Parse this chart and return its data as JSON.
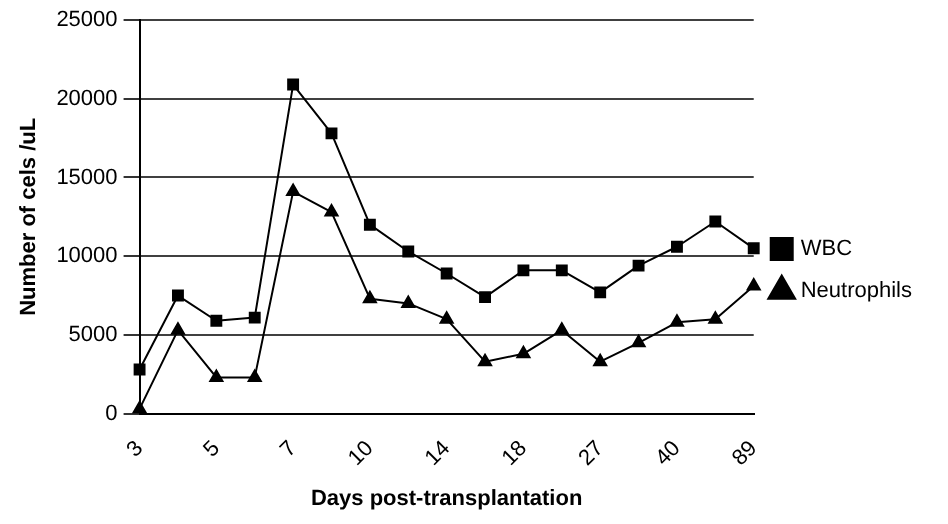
{
  "chart_data": {
    "type": "line",
    "xlabel": "Days post-transplantation",
    "ylabel": "Number of cels /uL",
    "categories": [
      "3",
      null,
      "5",
      null,
      "7",
      null,
      "10",
      null,
      "14",
      null,
      "18",
      null,
      "27",
      null,
      "40",
      null,
      "89"
    ],
    "series": [
      {
        "name": "WBC",
        "color": "#000000",
        "marker": "square",
        "values": [
          2800,
          7500,
          5900,
          6100,
          20900,
          17800,
          12000,
          10300,
          8900,
          7400,
          9100,
          9100,
          7700,
          9400,
          10600,
          12200,
          10500
        ]
      },
      {
        "name": "Neutrophils",
        "color": "#000000",
        "marker": "triangle",
        "values": [
          300,
          5300,
          2300,
          2300,
          14100,
          12800,
          7300,
          7000,
          6000,
          3300,
          3800,
          5300,
          3300,
          4500,
          5800,
          6000,
          8100
        ]
      }
    ],
    "ylim": [
      0,
      25000
    ],
    "yticks": [
      0,
      5000,
      10000,
      15000,
      20000,
      25000
    ],
    "grid": "y",
    "legend": "right",
    "line_style": "solid"
  }
}
